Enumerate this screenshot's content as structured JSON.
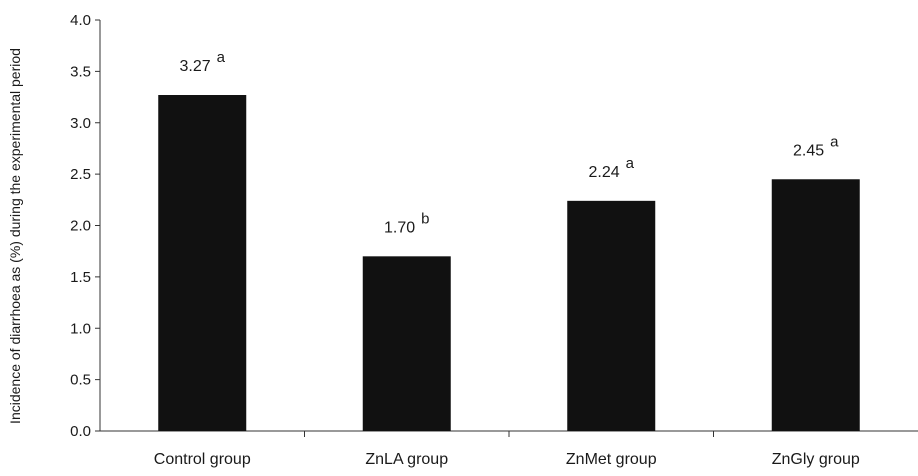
{
  "chart_data": {
    "type": "bar",
    "title": "",
    "xlabel": "",
    "ylabel": "Incidence of diarrhoea as (%) during the experimental period",
    "categories": [
      "Control group",
      "ZnLA group",
      "ZnMet group",
      "ZnGly group"
    ],
    "values": [
      3.27,
      1.7,
      2.24,
      2.45
    ],
    "value_labels": [
      "3.27",
      "1.70",
      "2.24",
      "2.45"
    ],
    "significance_letters": [
      "a",
      "b",
      "a",
      "a"
    ],
    "ylim": [
      0,
      4.0
    ],
    "yticks": [
      "0.0",
      "0.5",
      "1.0",
      "1.5",
      "2.0",
      "2.5",
      "3.0",
      "3.5",
      "4.0"
    ],
    "grid": false,
    "legend": "none",
    "bar_color": "#111111"
  }
}
